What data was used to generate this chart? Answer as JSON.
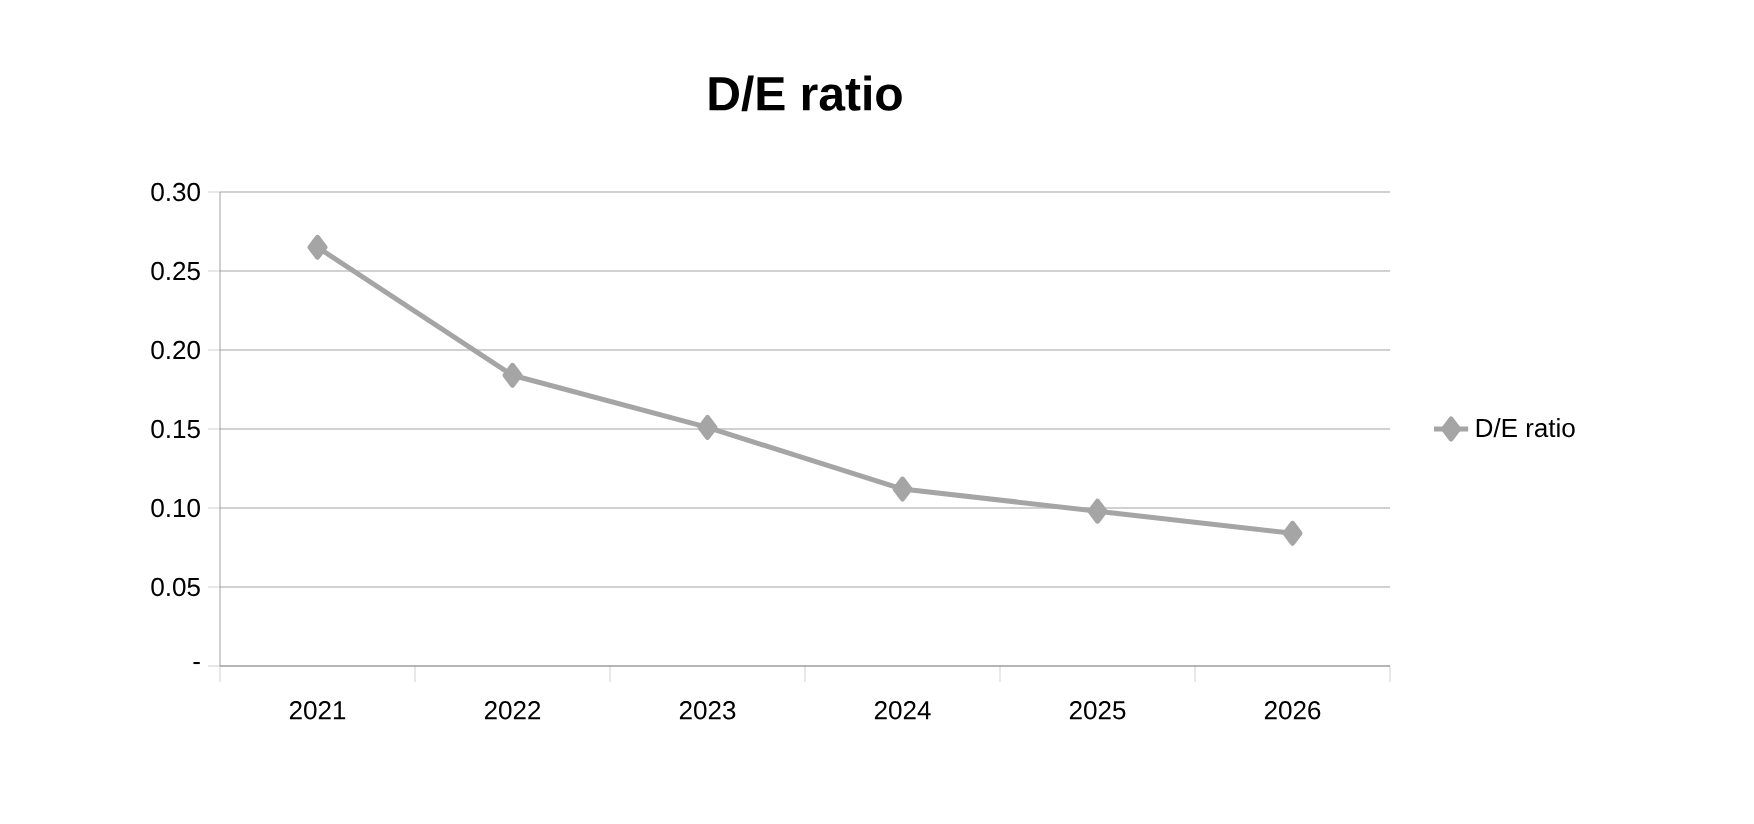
{
  "chart_data": {
    "type": "line",
    "title": "D/E ratio",
    "categories": [
      "2021",
      "2022",
      "2023",
      "2024",
      "2025",
      "2026"
    ],
    "series": [
      {
        "name": "D/E ratio",
        "color": "#a5a5a5",
        "values": [
          0.265,
          0.184,
          0.151,
          0.112,
          0.098,
          0.084
        ]
      }
    ],
    "ylim": [
      0,
      0.3
    ],
    "yticks": [
      {
        "value": 0,
        "label": "-"
      },
      0.05,
      {
        "value": 0.1,
        "label": "0.10"
      },
      0.15,
      {
        "value": 0.2,
        "label": "0.20"
      },
      0.25,
      {
        "value": 0.3,
        "label": "0.30"
      }
    ],
    "grid": "y",
    "legend": "right",
    "marker": "diamond",
    "line_style": "solid"
  }
}
